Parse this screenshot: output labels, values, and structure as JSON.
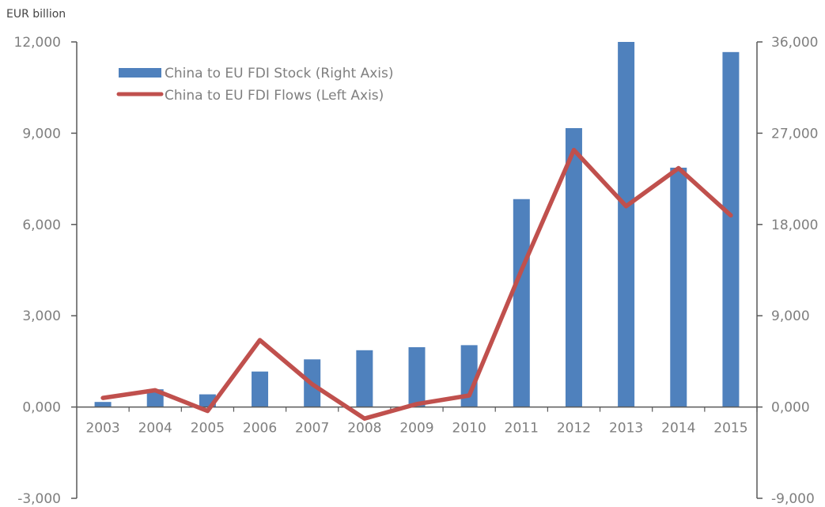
{
  "chart_data": {
    "type": "bar+line",
    "unit_label": "EUR billion",
    "categories": [
      "2003",
      "2004",
      "2005",
      "2006",
      "2007",
      "2008",
      "2009",
      "2010",
      "2011",
      "2012",
      "2013",
      "2014",
      "2015"
    ],
    "series": [
      {
        "name": "China to EU FDI Stock (Right Axis)",
        "type": "bar",
        "axis": "right",
        "color": "#4F81BD",
        "values": [
          500,
          1750,
          1250,
          3500,
          4700,
          5600,
          5900,
          6100,
          20500,
          27500,
          36000,
          23600,
          35000
        ]
      },
      {
        "name": "China to EU FDI Flows (Left Axis)",
        "type": "line",
        "axis": "left",
        "color": "#C0504D",
        "values": [
          300,
          550,
          -130,
          2200,
          750,
          -380,
          100,
          380,
          4500,
          8450,
          6600,
          7850,
          6300
        ]
      }
    ],
    "y_left": {
      "min": -3000,
      "max": 12000,
      "ticks": [
        "-3,000",
        "0,000",
        "3,000",
        "6,000",
        "9,000",
        "12,000"
      ]
    },
    "y_right": {
      "min": -9000,
      "max": 36000,
      "ticks": [
        "-9,000",
        "0,000",
        "9,000",
        "18,000",
        "27,000",
        "36,000"
      ]
    },
    "legend_position": "top-left",
    "grid": false
  }
}
